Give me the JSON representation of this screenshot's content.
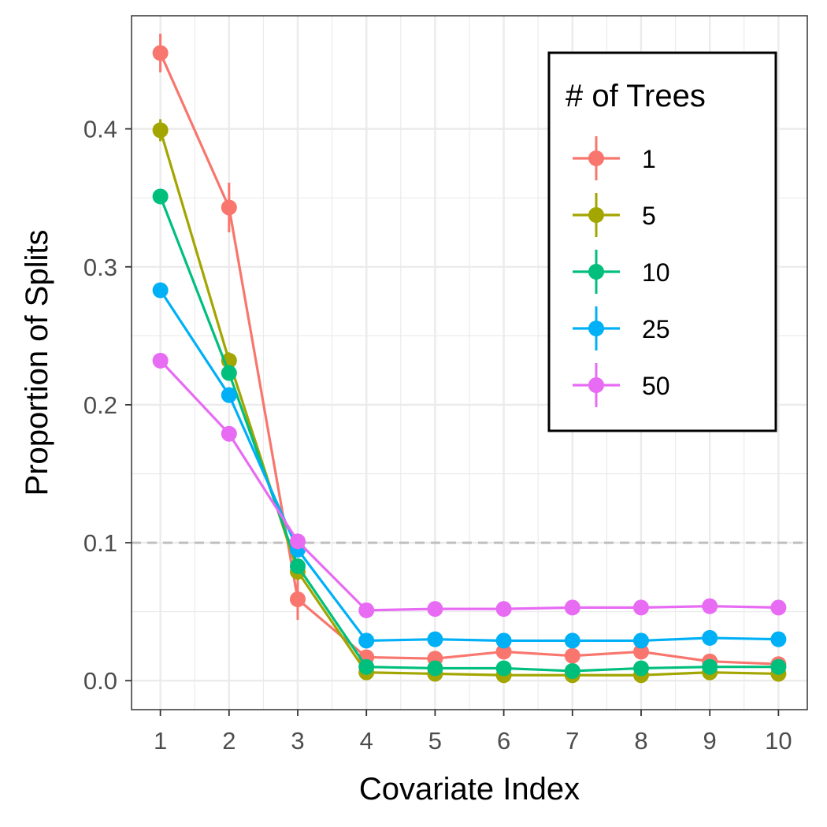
{
  "chart_data": {
    "type": "line",
    "xlabel": "Covariate Index",
    "ylabel": "Proportion of Splits",
    "x": [
      1,
      2,
      3,
      4,
      5,
      6,
      7,
      8,
      9,
      10
    ],
    "x_ticks": [
      "1",
      "2",
      "3",
      "4",
      "5",
      "6",
      "7",
      "8",
      "9",
      "10"
    ],
    "xlim": [
      0.58,
      10.42
    ],
    "ylim": [
      -0.021,
      0.482
    ],
    "y_ticks": [
      0.0,
      0.1,
      0.2,
      0.3,
      0.4
    ],
    "y_tick_labels": [
      "0.0",
      "0.1",
      "0.2",
      "0.3",
      "0.4"
    ],
    "grid": true,
    "reference_line": {
      "y": 0.1,
      "style": "dashed",
      "color": "#bfbfbf"
    },
    "legend": {
      "title": "# of Trees",
      "placement": "top-right"
    },
    "series": [
      {
        "name": "1",
        "color": "#F8766D",
        "values": [
          0.455,
          0.343,
          0.059,
          0.017,
          0.016,
          0.021,
          0.018,
          0.021,
          0.014,
          0.012
        ],
        "error": [
          0.014,
          0.018,
          0.015,
          0.003,
          0.003,
          0.003,
          0.003,
          0.003,
          0.003,
          0.002
        ]
      },
      {
        "name": "5",
        "color": "#A3A500",
        "values": [
          0.399,
          0.232,
          0.079,
          0.006,
          0.005,
          0.004,
          0.004,
          0.004,
          0.006,
          0.005
        ],
        "error": [
          0.008,
          0.006,
          0.006,
          0.002,
          0.002,
          0.002,
          0.002,
          0.002,
          0.002,
          0.002
        ]
      },
      {
        "name": "10",
        "color": "#00BF7D",
        "values": [
          0.351,
          0.223,
          0.083,
          0.01,
          0.009,
          0.009,
          0.007,
          0.009,
          0.01,
          0.01
        ],
        "error": [
          0.005,
          0.005,
          0.004,
          0.002,
          0.002,
          0.002,
          0.002,
          0.002,
          0.002,
          0.002
        ]
      },
      {
        "name": "25",
        "color": "#00B0F6",
        "values": [
          0.283,
          0.207,
          0.095,
          0.029,
          0.03,
          0.029,
          0.029,
          0.029,
          0.031,
          0.03
        ],
        "error": [
          0.003,
          0.003,
          0.003,
          0.002,
          0.002,
          0.002,
          0.002,
          0.002,
          0.002,
          0.002
        ]
      },
      {
        "name": "50",
        "color": "#E76BF3",
        "values": [
          0.232,
          0.179,
          0.101,
          0.051,
          0.052,
          0.052,
          0.053,
          0.053,
          0.054,
          0.053
        ],
        "error": [
          0.002,
          0.002,
          0.002,
          0.001,
          0.001,
          0.001,
          0.001,
          0.001,
          0.001,
          0.001
        ]
      }
    ]
  }
}
